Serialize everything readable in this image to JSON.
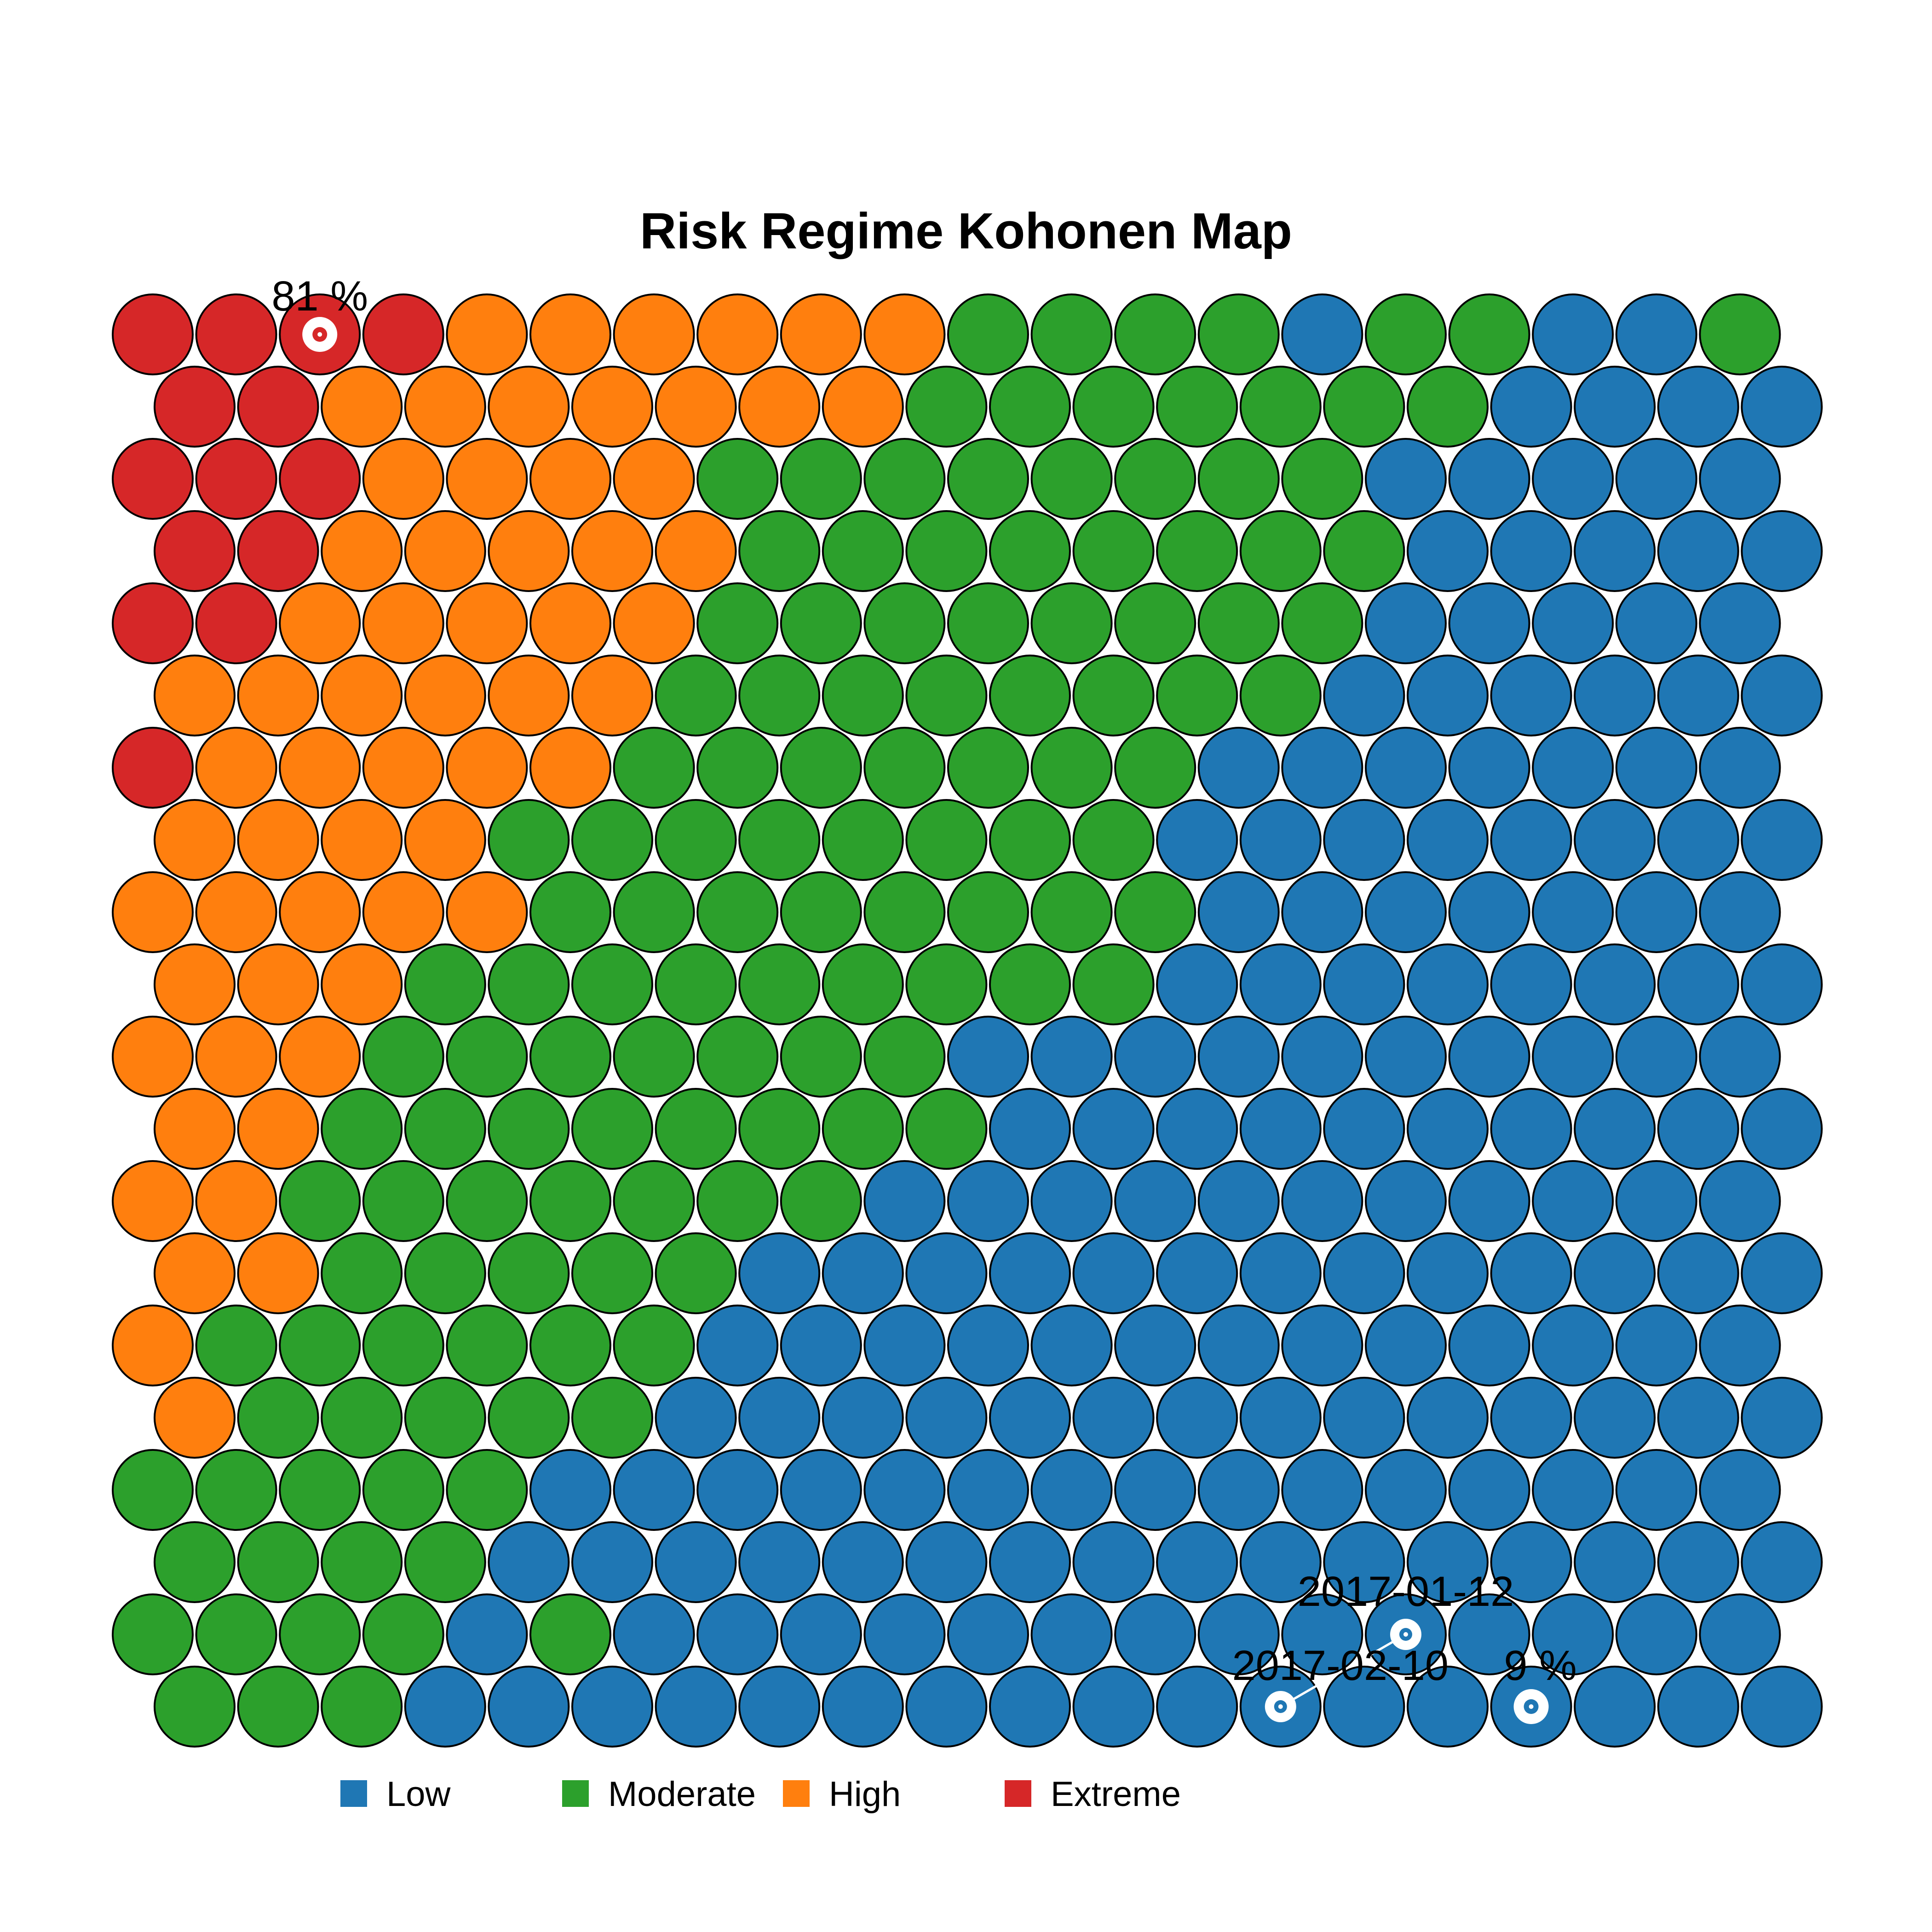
{
  "chart_data": {
    "type": "heatmap",
    "title": "Risk Regime Kohonen Map",
    "grid": {
      "cols": 20,
      "rows": 20,
      "topology": "hexagonal"
    },
    "categories": [
      "Low",
      "Moderate",
      "High",
      "Extreme"
    ],
    "colors": {
      "Low": "#1f77b4",
      "Moderate": "#2ca02c",
      "High": "#ff7f0e",
      "Extreme": "#d62728"
    },
    "rows": [
      [
        "E",
        "E",
        "E",
        "E",
        "H",
        "H",
        "H",
        "H",
        "H",
        "H",
        "M",
        "M",
        "M",
        "M",
        "L",
        "M",
        "M",
        "L",
        "L",
        "M"
      ],
      [
        "E",
        "E",
        "H",
        "H",
        "H",
        "H",
        "H",
        "H",
        "H",
        "M",
        "M",
        "M",
        "M",
        "M",
        "M",
        "M",
        "L",
        "L",
        "L",
        "L"
      ],
      [
        "E",
        "E",
        "E",
        "H",
        "H",
        "H",
        "H",
        "M",
        "M",
        "M",
        "M",
        "M",
        "M",
        "M",
        "M",
        "L",
        "L",
        "L",
        "L",
        "L"
      ],
      [
        "E",
        "E",
        "H",
        "H",
        "H",
        "H",
        "H",
        "M",
        "M",
        "M",
        "M",
        "M",
        "M",
        "M",
        "M",
        "L",
        "L",
        "L",
        "L",
        "L"
      ],
      [
        "E",
        "E",
        "H",
        "H",
        "H",
        "H",
        "H",
        "M",
        "M",
        "M",
        "M",
        "M",
        "M",
        "M",
        "M",
        "L",
        "L",
        "L",
        "L",
        "L"
      ],
      [
        "H",
        "H",
        "H",
        "H",
        "H",
        "H",
        "M",
        "M",
        "M",
        "M",
        "M",
        "M",
        "M",
        "M",
        "L",
        "L",
        "L",
        "L",
        "L",
        "L"
      ],
      [
        "E",
        "H",
        "H",
        "H",
        "H",
        "H",
        "M",
        "M",
        "M",
        "M",
        "M",
        "M",
        "M",
        "L",
        "L",
        "L",
        "L",
        "L",
        "L",
        "L"
      ],
      [
        "H",
        "H",
        "H",
        "H",
        "M",
        "M",
        "M",
        "M",
        "M",
        "M",
        "M",
        "M",
        "L",
        "L",
        "L",
        "L",
        "L",
        "L",
        "L",
        "L"
      ],
      [
        "H",
        "H",
        "H",
        "H",
        "H",
        "M",
        "M",
        "M",
        "M",
        "M",
        "M",
        "M",
        "M",
        "L",
        "L",
        "L",
        "L",
        "L",
        "L",
        "L"
      ],
      [
        "H",
        "H",
        "H",
        "M",
        "M",
        "M",
        "M",
        "M",
        "M",
        "M",
        "M",
        "M",
        "L",
        "L",
        "L",
        "L",
        "L",
        "L",
        "L",
        "L"
      ],
      [
        "H",
        "H",
        "H",
        "M",
        "M",
        "M",
        "M",
        "M",
        "M",
        "M",
        "L",
        "L",
        "L",
        "L",
        "L",
        "L",
        "L",
        "L",
        "L",
        "L"
      ],
      [
        "H",
        "H",
        "M",
        "M",
        "M",
        "M",
        "M",
        "M",
        "M",
        "M",
        "L",
        "L",
        "L",
        "L",
        "L",
        "L",
        "L",
        "L",
        "L",
        "L"
      ],
      [
        "H",
        "H",
        "M",
        "M",
        "M",
        "M",
        "M",
        "M",
        "M",
        "L",
        "L",
        "L",
        "L",
        "L",
        "L",
        "L",
        "L",
        "L",
        "L",
        "L"
      ],
      [
        "H",
        "H",
        "M",
        "M",
        "M",
        "M",
        "M",
        "L",
        "L",
        "L",
        "L",
        "L",
        "L",
        "L",
        "L",
        "L",
        "L",
        "L",
        "L",
        "L"
      ],
      [
        "H",
        "M",
        "M",
        "M",
        "M",
        "M",
        "M",
        "L",
        "L",
        "L",
        "L",
        "L",
        "L",
        "L",
        "L",
        "L",
        "L",
        "L",
        "L",
        "L"
      ],
      [
        "H",
        "M",
        "M",
        "M",
        "M",
        "M",
        "L",
        "L",
        "L",
        "L",
        "L",
        "L",
        "L",
        "L",
        "L",
        "L",
        "L",
        "L",
        "L",
        "L"
      ],
      [
        "M",
        "M",
        "M",
        "M",
        "M",
        "L",
        "L",
        "L",
        "L",
        "L",
        "L",
        "L",
        "L",
        "L",
        "L",
        "L",
        "L",
        "L",
        "L",
        "L"
      ],
      [
        "M",
        "M",
        "M",
        "M",
        "L",
        "L",
        "L",
        "L",
        "L",
        "L",
        "L",
        "L",
        "L",
        "L",
        "L",
        "L",
        "L",
        "L",
        "L",
        "L"
      ],
      [
        "M",
        "M",
        "M",
        "M",
        "L",
        "M",
        "L",
        "L",
        "L",
        "L",
        "L",
        "L",
        "L",
        "L",
        "L",
        "L",
        "L",
        "L",
        "L",
        "L"
      ],
      [
        "M",
        "M",
        "M",
        "L",
        "L",
        "L",
        "L",
        "L",
        "L",
        "L",
        "L",
        "L",
        "L",
        "L",
        "L",
        "L",
        "L",
        "L",
        "L",
        "L"
      ]
    ],
    "markers": [
      {
        "label": "81 %",
        "row": 0,
        "col": 2,
        "ring": "large"
      },
      {
        "label": "9 %",
        "row": 19,
        "col": 16,
        "ring": "large"
      },
      {
        "label": "2017-01-12",
        "row": 18,
        "col": 15,
        "ring": "small"
      },
      {
        "label": "2017-02-10",
        "row": 19,
        "col": 13,
        "ring": "small"
      }
    ],
    "trajectory": [
      {
        "row": 19,
        "col": 13
      },
      {
        "row": 18,
        "col": 15
      }
    ],
    "legend": {
      "position": "bottom",
      "items": [
        {
          "label": "Low",
          "color": "#1f77b4"
        },
        {
          "label": "Moderate",
          "color": "#2ca02c"
        },
        {
          "label": "High",
          "color": "#ff7f0e"
        },
        {
          "label": "Extreme",
          "color": "#d62728"
        }
      ]
    }
  }
}
